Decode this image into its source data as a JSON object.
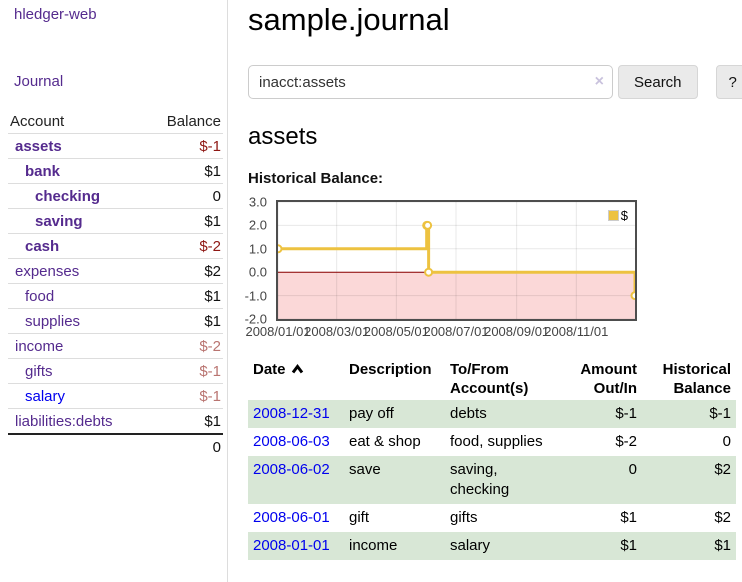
{
  "app": {
    "title": "hledger-web"
  },
  "nav": {
    "journal": "Journal"
  },
  "sidebar": {
    "headers": {
      "account": "Account",
      "balance": "Balance"
    },
    "accounts": [
      {
        "name": "assets",
        "depth": 1,
        "bold": true,
        "balance": "$-1",
        "neg": "strong",
        "unvisited": false
      },
      {
        "name": "bank",
        "depth": 2,
        "bold": true,
        "balance": "$1",
        "neg": "none",
        "unvisited": false
      },
      {
        "name": "checking",
        "depth": 3,
        "bold": true,
        "balance": "0",
        "neg": "none",
        "unvisited": false
      },
      {
        "name": "saving",
        "depth": 3,
        "bold": true,
        "balance": "$1",
        "neg": "none",
        "unvisited": false
      },
      {
        "name": "cash",
        "depth": 2,
        "bold": true,
        "balance": "$-2",
        "neg": "strong",
        "unvisited": false
      },
      {
        "name": "expenses",
        "depth": 1,
        "bold": false,
        "balance": "$2",
        "neg": "none",
        "unvisited": false
      },
      {
        "name": "food",
        "depth": 2,
        "bold": false,
        "balance": "$1",
        "neg": "none",
        "unvisited": false
      },
      {
        "name": "supplies",
        "depth": 2,
        "bold": false,
        "balance": "$1",
        "neg": "none",
        "unvisited": false
      },
      {
        "name": "income",
        "depth": 1,
        "bold": false,
        "balance": "$-2",
        "neg": "soft",
        "unvisited": false
      },
      {
        "name": "gifts",
        "depth": 2,
        "bold": false,
        "balance": "$-1",
        "neg": "soft",
        "unvisited": false
      },
      {
        "name": "salary",
        "depth": 2,
        "bold": false,
        "balance": "$-1",
        "neg": "soft",
        "unvisited": true
      },
      {
        "name": "liabilities:debts",
        "depth": 1,
        "bold": false,
        "balance": "$1",
        "neg": "none",
        "unvisited": false
      }
    ],
    "total": "0"
  },
  "header": {
    "title": "sample.journal"
  },
  "search": {
    "value": "inacct:assets",
    "clear_icon": "×",
    "button_label": "Search",
    "help_label": "?"
  },
  "account_page": {
    "title": "assets",
    "chart_heading": "Historical Balance:"
  },
  "chart_data": {
    "type": "line",
    "step": true,
    "title": "Historical Balance:",
    "xlim": [
      "2008-01-01",
      "2008-12-31"
    ],
    "ylim": [
      -2,
      3
    ],
    "grid": true,
    "legend": {
      "label": "$",
      "color": "#edc240",
      "position": "top-right"
    },
    "series": [
      {
        "name": "$",
        "color": "#edc240",
        "points": [
          {
            "date": "2008-01-01",
            "value": 1
          },
          {
            "date": "2008-06-01",
            "value": 2
          },
          {
            "date": "2008-06-02",
            "value": 2
          },
          {
            "date": "2008-06-03",
            "value": 0
          },
          {
            "date": "2008-12-31",
            "value": -1
          }
        ]
      }
    ],
    "yticks": [
      {
        "v": 3,
        "label": "3.0"
      },
      {
        "v": 2,
        "label": "2.0"
      },
      {
        "v": 1,
        "label": "1.0"
      },
      {
        "v": 0,
        "label": "0.0"
      },
      {
        "v": -1,
        "label": "-1.0"
      },
      {
        "v": -2,
        "label": "-2.0"
      }
    ],
    "xticks": [
      {
        "date": "2008-01-01",
        "label": "2008/01/01"
      },
      {
        "date": "2008-03-01",
        "label": "2008/03/01"
      },
      {
        "date": "2008-05-01",
        "label": "2008/05/01"
      },
      {
        "date": "2008-07-01",
        "label": "2008/07/01"
      },
      {
        "date": "2008-09-01",
        "label": "2008/09/01"
      },
      {
        "date": "2008-11-01",
        "label": "2008/11/01"
      }
    ],
    "negative_region": {
      "below": 0,
      "fill": "#fbd8d8",
      "line_color": "#8b0000"
    }
  },
  "register": {
    "columns": [
      {
        "label": "Date",
        "sorted_asc": true
      },
      {
        "label": "Description"
      },
      {
        "label": "To/From Account(s)"
      },
      {
        "label": "Amount Out/In"
      },
      {
        "label": "Historical Balance"
      }
    ],
    "rows": [
      {
        "date": "2008-12-31",
        "description": "pay off",
        "accounts": "debts",
        "amount": "$-1",
        "amount_neg": true,
        "balance": "$-1",
        "balance_neg": true
      },
      {
        "date": "2008-06-03",
        "description": "eat & shop",
        "accounts": "food, supplies",
        "amount": "$-2",
        "amount_neg": true,
        "balance": "0",
        "balance_neg": false
      },
      {
        "date": "2008-06-02",
        "description": "save",
        "accounts": "saving, checking",
        "amount": "0",
        "amount_neg": false,
        "balance": "$2",
        "balance_neg": false
      },
      {
        "date": "2008-06-01",
        "description": "gift",
        "accounts": "gifts",
        "amount": "$1",
        "amount_neg": false,
        "balance": "$2",
        "balance_neg": false
      },
      {
        "date": "2008-01-01",
        "description": "income",
        "accounts": "salary",
        "amount": "$1",
        "amount_neg": false,
        "balance": "$1",
        "balance_neg": false
      }
    ]
  },
  "colors": {
    "link_visited": "#552b8e",
    "link_unvisited": "#0000ee",
    "negative_strong": "#8e1713",
    "negative_soft": "#b97470",
    "row_stripe_green": "#d8e7d6",
    "series_gold": "#edc240",
    "negative_zone_pink": "#fbd8d8",
    "zero_line_red": "#8b0000"
  }
}
